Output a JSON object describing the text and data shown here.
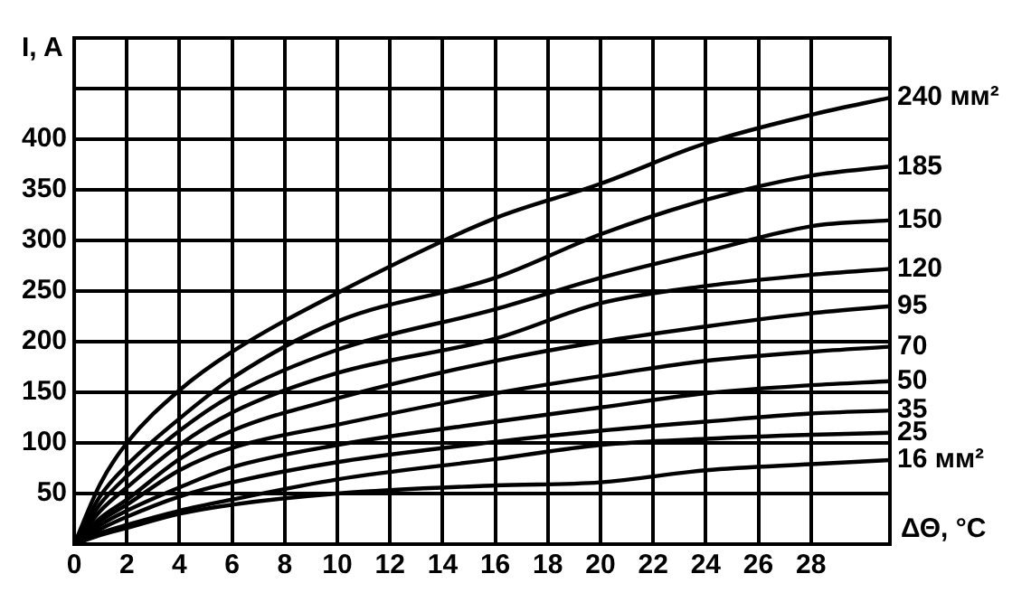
{
  "chart_data": {
    "type": "line",
    "xlabel": "ΔΘ, °C",
    "ylabel": "I, A",
    "x": [
      0,
      1,
      2,
      4,
      6,
      10,
      16,
      20,
      24,
      28,
      31
    ],
    "xlim": [
      0,
      31
    ],
    "xticks": [
      0,
      2,
      4,
      6,
      8,
      10,
      12,
      14,
      16,
      18,
      20,
      22,
      24,
      26,
      28
    ],
    "ylim": [
      0,
      500
    ],
    "yticks": [
      {
        "value": 0,
        "label": null
      },
      50,
      100,
      150,
      200,
      250,
      300,
      350,
      400,
      {
        "value": 450,
        "label": null
      },
      {
        "value": 500,
        "label": null
      }
    ],
    "grid": true,
    "legend": false,
    "marker": "none",
    "line_style": "solid",
    "series": [
      {
        "name": "240 мм²",
        "color": "#000000",
        "values": [
          0,
          60,
          100,
          152,
          190,
          248,
          322,
          356,
          396,
          424,
          441
        ]
      },
      {
        "name": "185",
        "color": "#000000",
        "values": [
          0,
          48,
          78,
          124,
          164,
          220,
          263,
          306,
          340,
          364,
          373
        ]
      },
      {
        "name": "150",
        "color": "#000000",
        "values": [
          0,
          40,
          67,
          112,
          147,
          192,
          232,
          263,
          289,
          314,
          320
        ]
      },
      {
        "name": "120",
        "color": "#000000",
        "values": [
          0,
          33,
          56,
          98,
          130,
          169,
          203,
          238,
          255,
          266,
          272
        ]
      },
      {
        "name": "95",
        "color": "#000000",
        "values": [
          0,
          26,
          44,
          84,
          112,
          144,
          181,
          200,
          215,
          228,
          235
        ]
      },
      {
        "name": "70",
        "color": "#000000",
        "values": [
          0,
          23,
          39,
          73,
          95,
          118,
          149,
          166,
          181,
          190,
          195
        ]
      },
      {
        "name": "50",
        "color": "#000000",
        "values": [
          0,
          19,
          33,
          56,
          76,
          98,
          121,
          135,
          149,
          157,
          161
        ]
      },
      {
        "name": "35",
        "color": "#000000",
        "values": [
          0,
          15,
          27,
          47,
          61,
          81,
          101,
          112,
          121,
          129,
          132
        ]
      },
      {
        "name": "25",
        "color": "#000000",
        "values": [
          0,
          11,
          19,
          33,
          44,
          64,
          84,
          98,
          104,
          108,
          110
        ]
      },
      {
        "name": "16 мм²",
        "color": "#000000",
        "values": [
          0,
          9,
          16,
          30,
          39,
          50,
          58,
          61,
          73,
          79,
          83
        ]
      }
    ]
  }
}
